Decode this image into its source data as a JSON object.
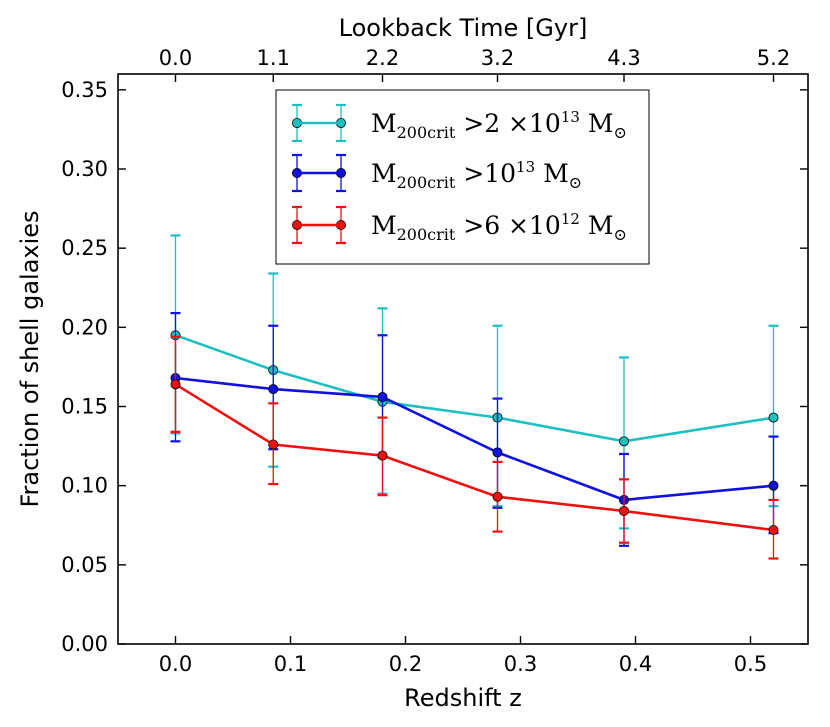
{
  "chart_data": {
    "type": "line",
    "xlabel": "Redshift z",
    "ylabel": "Fraction of shell galaxies",
    "top_xlabel": "Lookback Time [Gyr]",
    "xlim": [
      -0.05,
      0.55
    ],
    "ylim": [
      0.0,
      0.36
    ],
    "xticks": [
      0.0,
      0.1,
      0.2,
      0.3,
      0.4,
      0.5
    ],
    "xtick_labels": [
      "0.0",
      "0.1",
      "0.2",
      "0.3",
      "0.4",
      "0.5"
    ],
    "yticks": [
      0.0,
      0.05,
      0.1,
      0.15,
      0.2,
      0.25,
      0.3,
      0.35
    ],
    "ytick_labels": [
      "0.00",
      "0.05",
      "0.10",
      "0.15",
      "0.20",
      "0.25",
      "0.30",
      "0.35"
    ],
    "top_ticks": [
      0.0,
      0.085,
      0.18,
      0.28,
      0.39,
      0.52
    ],
    "top_tick_labels": [
      "0.0",
      "1.1",
      "2.2",
      "3.2",
      "4.3",
      "5.2"
    ],
    "grid": false,
    "legend_position": "top-center",
    "series": [
      {
        "name": "M200crit > 2 ×10^13 M☉",
        "legend": {
          "base": "M",
          "sub": "200crit",
          "rel": " >2 ×10",
          "exp": "13",
          "unit": "M",
          "unit_sym": "⊙"
        },
        "color": "#1dbfbf",
        "x": [
          0.0,
          0.085,
          0.18,
          0.28,
          0.39,
          0.52
        ],
        "y": [
          0.195,
          0.173,
          0.153,
          0.143,
          0.128,
          0.143
        ],
        "err_low": [
          0.133,
          0.112,
          0.095,
          0.087,
          0.073,
          0.087
        ],
        "err_high": [
          0.258,
          0.234,
          0.212,
          0.201,
          0.181,
          0.201
        ]
      },
      {
        "name": "M200crit > 10^13 M☉",
        "legend": {
          "base": "M",
          "sub": "200crit",
          "rel": " >10",
          "exp": "13",
          "unit": "M",
          "unit_sym": "⊙"
        },
        "color": "#1010e0",
        "x": [
          0.0,
          0.085,
          0.18,
          0.28,
          0.39,
          0.52
        ],
        "y": [
          0.168,
          0.161,
          0.156,
          0.121,
          0.091,
          0.1
        ],
        "err_low": [
          0.128,
          0.123,
          0.118,
          0.086,
          0.062,
          0.07
        ],
        "err_high": [
          0.209,
          0.201,
          0.195,
          0.155,
          0.12,
          0.131
        ]
      },
      {
        "name": "M200crit > 6 ×10^12 M☉",
        "legend": {
          "base": "M",
          "sub": "200crit",
          "rel": " >6 ×10",
          "exp": "12",
          "unit": "M",
          "unit_sym": "⊙"
        },
        "color": "#f01010",
        "x": [
          0.0,
          0.085,
          0.18,
          0.28,
          0.39,
          0.52
        ],
        "y": [
          0.164,
          0.126,
          0.119,
          0.093,
          0.084,
          0.072
        ],
        "err_low": [
          0.134,
          0.101,
          0.094,
          0.071,
          0.064,
          0.054
        ],
        "err_high": [
          0.194,
          0.152,
          0.143,
          0.115,
          0.104,
          0.091
        ]
      }
    ]
  }
}
